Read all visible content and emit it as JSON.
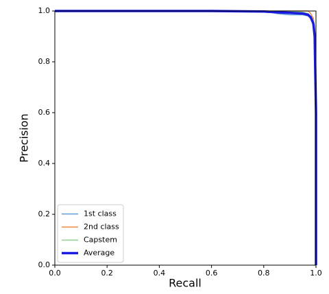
{
  "chart_data": {
    "type": "line",
    "xlabel": "Recall",
    "ylabel": "Precision",
    "x": [
      0.0,
      0.6,
      0.8,
      0.85,
      0.9,
      0.95,
      0.97,
      0.98,
      0.99,
      0.995,
      1.0,
      1.0
    ],
    "series": [
      {
        "name": "1st class",
        "color": "#5b9bd5",
        "linewidth": 1.5,
        "values": [
          1.0,
          1.0,
          1.0,
          0.99,
          0.985,
          0.985,
          0.98,
          0.97,
          0.95,
          0.9,
          0.6,
          null
        ]
      },
      {
        "name": "2nd class",
        "color": "#f0883e",
        "linewidth": 1.5,
        "values": [
          1.0,
          1.0,
          1.0,
          1.0,
          1.0,
          1.0,
          1.0,
          0.99,
          0.97,
          0.93,
          0.35,
          null
        ]
      },
      {
        "name": "Capstem",
        "color": "#8fcf8f",
        "linewidth": 1.5,
        "values": [
          1.0,
          1.0,
          1.0,
          1.0,
          1.0,
          0.995,
          0.99,
          0.98,
          0.96,
          0.92,
          0.5,
          null
        ]
      },
      {
        "name": "Average",
        "color": "#1a1ae0",
        "linewidth": 3.5,
        "values": [
          1.0,
          1.0,
          0.998,
          0.995,
          0.993,
          0.99,
          0.985,
          0.975,
          0.95,
          0.9,
          0.6,
          0.0
        ]
      }
    ],
    "xlim": [
      0.0,
      1.0
    ],
    "ylim": [
      0.0,
      1.0
    ],
    "xticks": [
      {
        "value": 0,
        "label": "0.0"
      },
      0.2,
      0.4,
      0.6,
      0.8,
      {
        "value": 1,
        "label": "1.0"
      }
    ],
    "yticks": [
      {
        "value": 0,
        "label": "0.0"
      },
      0.2,
      0.4,
      0.6,
      0.8,
      {
        "value": 1,
        "label": "1.0"
      }
    ],
    "grid": false,
    "legend": "lower left"
  }
}
